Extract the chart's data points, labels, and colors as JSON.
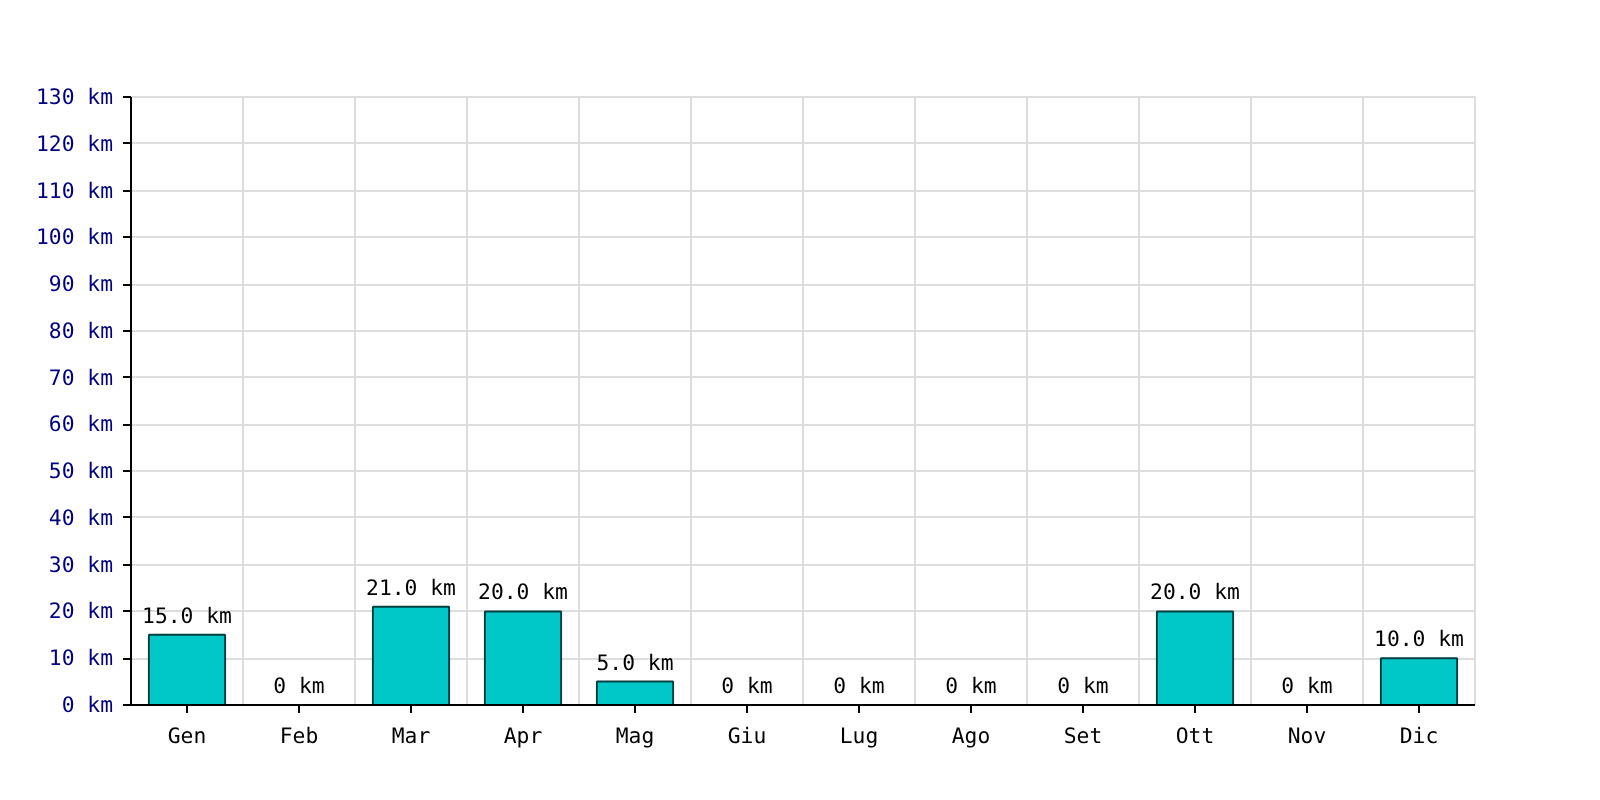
{
  "chart_data": {
    "type": "bar",
    "categories": [
      "Gen",
      "Feb",
      "Mar",
      "Apr",
      "Mag",
      "Giu",
      "Lug",
      "Ago",
      "Set",
      "Ott",
      "Nov",
      "Dic"
    ],
    "values": [
      15,
      0,
      21,
      20,
      5,
      0,
      0,
      0,
      0,
      20,
      0,
      10
    ],
    "value_labels": [
      "15.0 km",
      "0 km",
      "21.0 km",
      "20.0 km",
      "5.0 km",
      "0 km",
      "0 km",
      "0 km",
      "0 km",
      "20.0 km",
      "0 km",
      "10.0 km"
    ],
    "color": "#00c8c8",
    "ylim": [
      0,
      130
    ],
    "yticks": [
      {
        "value": 0,
        "label": "0 km"
      },
      {
        "value": 10,
        "label": "10 km"
      },
      {
        "value": 20,
        "label": "20 km"
      },
      {
        "value": 30,
        "label": "30 km"
      },
      {
        "value": 40,
        "label": "40 km"
      },
      {
        "value": 50,
        "label": "50 km"
      },
      {
        "value": 60,
        "label": "60 km"
      },
      {
        "value": 70,
        "label": "70 km"
      },
      {
        "value": 80,
        "label": "80 km"
      },
      {
        "value": 90,
        "label": "90 km"
      },
      {
        "value": 100,
        "label": "100 km"
      },
      {
        "value": 110,
        "label": "110 km"
      },
      {
        "value": 120,
        "label": "120 km"
      },
      {
        "value": 130,
        "label": "130 km"
      }
    ],
    "grid": true
  }
}
